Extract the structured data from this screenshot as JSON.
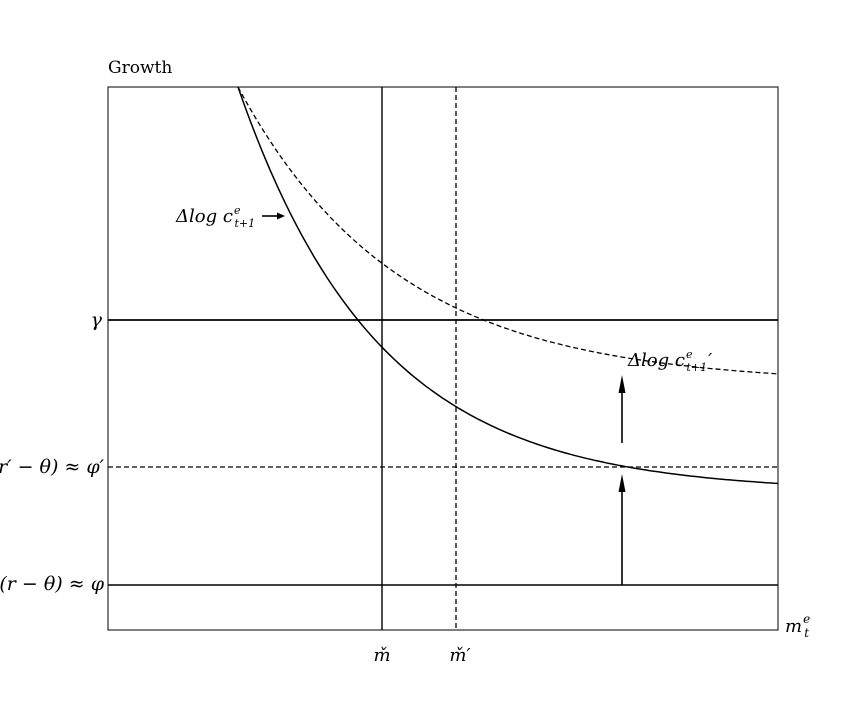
{
  "figure": {
    "y_axis_label": "Growth",
    "x_axis_label": {
      "base": "m",
      "sub": "t",
      "sup": "e"
    },
    "gamma_label": "γ",
    "phi_prime_label": "(r′ − θ) ≈ φ′",
    "phi_label": "(r − θ) ≈ φ",
    "m_check_label": "m̌",
    "m_check_prime_label": "m̌′",
    "curve_label": {
      "prefix": "Δlog ",
      "base": "c",
      "sup": "e",
      "sub": "t+1"
    },
    "curve_prime_label": {
      "prefix": "Δlog ",
      "base": "c",
      "sup": "e",
      "sub": "t+1",
      "prime": "′"
    }
  },
  "colors": {
    "line": "#000000",
    "background": "#ffffff"
  }
}
